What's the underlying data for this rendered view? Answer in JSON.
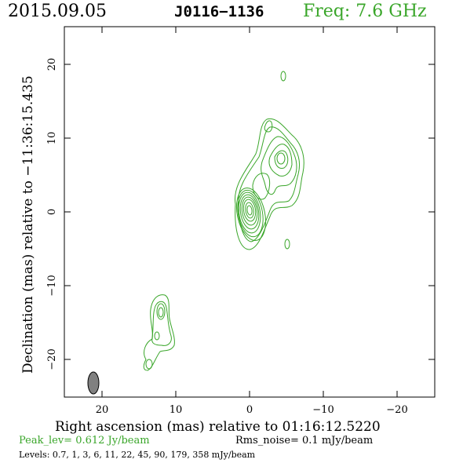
{
  "header": {
    "date": "2015.09.05",
    "source": "J0116−1136",
    "frequency": "Freq: 7.6 GHz"
  },
  "axes": {
    "xlabel": "Right ascension (mas) relative to 01:16:12.5220",
    "ylabel": "Declination (mas) relative to −11:36:15.435",
    "x_ticks": [
      "20",
      "10",
      "0",
      "−10",
      "−20"
    ],
    "y_ticks": [
      "20",
      "10",
      "0",
      "−10",
      "−20"
    ],
    "x_range_mas": [
      25,
      -25
    ],
    "y_range_mas": [
      -25,
      25
    ]
  },
  "footer": {
    "peak": "Peak_lev=  0.612 Jy/beam",
    "rms": "Rms_noise=  0.1 mJy/beam",
    "levels": "Levels: 0.7,    1,    3,    6,   11,   22,   45,   90, 179, 358 mJy/beam"
  },
  "colors": {
    "contour": "#3aa62a",
    "beam": "#808080",
    "frame": "#000000"
  }
}
